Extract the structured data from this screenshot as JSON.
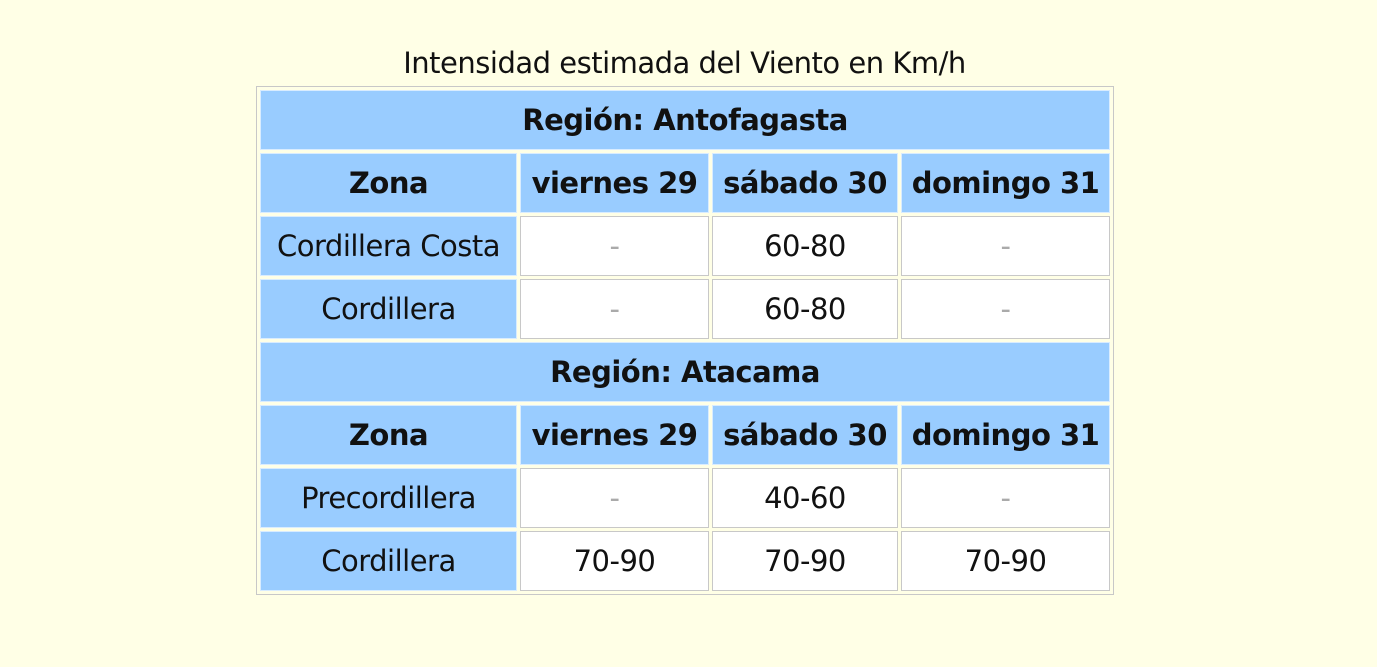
{
  "caption": "Intensidad estimada del Viento en Km/h",
  "columns": [
    "Zona",
    "viernes 29",
    "sábado 30",
    "domingo 31"
  ],
  "regions": [
    {
      "title": "Región: Antofagasta",
      "rows": [
        {
          "zone": "Cordillera Costa",
          "values": [
            "-",
            "60-80",
            "-"
          ]
        },
        {
          "zone": "Cordillera",
          "values": [
            "-",
            "60-80",
            "-"
          ]
        }
      ]
    },
    {
      "title": "Región: Atacama",
      "rows": [
        {
          "zone": "Precordillera",
          "values": [
            "-",
            "40-60",
            "-"
          ]
        },
        {
          "zone": "Cordillera",
          "values": [
            "70-90",
            "70-90",
            "70-90"
          ]
        }
      ]
    }
  ]
}
